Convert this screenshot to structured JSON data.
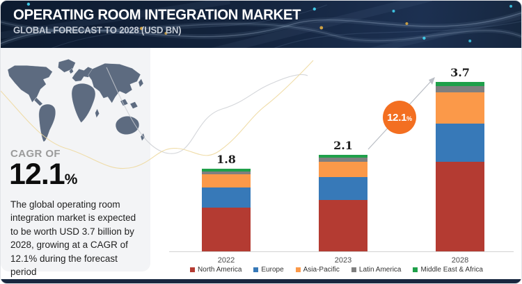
{
  "header": {
    "title": "OPERATING ROOM INTEGRATION MARKET",
    "subtitle": "GLOBAL FORECAST TO 2028 (USD BN)"
  },
  "panel": {
    "cagr_label": "CAGR OF",
    "cagr_value": "12.1",
    "cagr_unit": "%",
    "description": "The global operating room integration market is expected to be worth USD  3.7 billion by 2028, growing at a CAGR of 12.1% during the forecast period"
  },
  "callout": {
    "value": "12.1",
    "unit": "%",
    "color": "#f36f21"
  },
  "chart_data": {
    "type": "bar",
    "stacked": true,
    "title": "Operating Room Integration Market, Global Forecast to 2028 (USD BN)",
    "categories": [
      "2022",
      "2023",
      "2028"
    ],
    "totals": [
      1.8,
      2.1,
      3.7
    ],
    "total_labels": [
      "1.8",
      "2.1",
      "3.7"
    ],
    "series": [
      {
        "name": "North America",
        "color": "#b43b32",
        "values": [
          0.95,
          1.12,
          1.95
        ]
      },
      {
        "name": "Europe",
        "color": "#3779b8",
        "values": [
          0.45,
          0.5,
          0.84
        ]
      },
      {
        "name": "Asia-Pacific",
        "color": "#fb9949",
        "values": [
          0.29,
          0.34,
          0.68
        ]
      },
      {
        "name": "Latin America",
        "color": "#7f7f7f",
        "values": [
          0.06,
          0.08,
          0.14
        ]
      },
      {
        "name": "Middle East & Africa",
        "color": "#1fa04a",
        "values": [
          0.05,
          0.06,
          0.09
        ]
      }
    ],
    "xlabel": "",
    "ylabel": "",
    "grid": false,
    "legend_position": "bottom",
    "annotation": {
      "text": "12.1%",
      "type": "growth-cagr-callout",
      "between": [
        "2023",
        "2028"
      ]
    }
  },
  "colors": {
    "header_bg": "#13233c",
    "panel_bg": "#f3f4f6",
    "map_fill": "#5d6b80",
    "axis": "#d3d3d3",
    "arrow": "#b9bdc4",
    "wave_gray": "#c9ccd1",
    "wave_gold": "#edd9a0",
    "bottom_strip": "#18273f"
  }
}
